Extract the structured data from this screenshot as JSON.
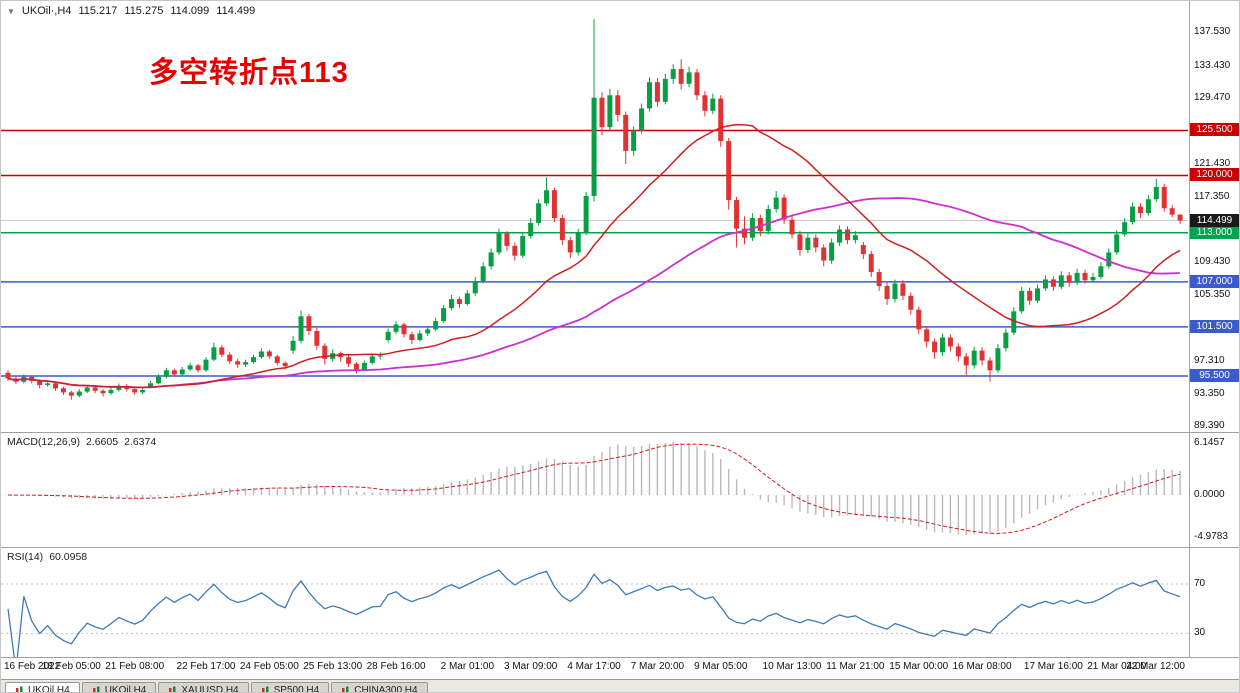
{
  "main_title": {
    "dropdown_icon": "▼",
    "symbol": "UKOil·,H4",
    "open": "115.217",
    "high": "115.275",
    "low": "114.099",
    "close": "114.499"
  },
  "annotation": {
    "text": "多空转折点113",
    "color": "#e60000"
  },
  "chart_data": {
    "type": "candlestick",
    "symbol": "UKOil",
    "timeframe": "H4",
    "title": "UKOil·,H4 115.217 115.275 114.099 114.499",
    "x_labels": [
      "16 Feb 2022",
      "18 Feb 05:00",
      "21 Feb 08:00",
      "22 Feb 17:00",
      "24 Feb 05:00",
      "25 Feb 13:00",
      "28 Feb 16:00",
      "2 Mar 01:00",
      "3 Mar 09:00",
      "4 Mar 17:00",
      "7 Mar 20:00",
      "9 Mar 05:00",
      "10 Mar 13:00",
      "11 Mar 21:00",
      "15 Mar 00:00",
      "16 Mar 08:00",
      "17 Mar 16:00",
      "21 Mar 04:00",
      "22 Mar 12:00"
    ],
    "price_ticks": [
      {
        "v": 137.53,
        "label": "137.530"
      },
      {
        "v": 133.43,
        "label": "133.430"
      },
      {
        "v": 129.47,
        "label": "129.470"
      },
      {
        "v": 121.43,
        "label": "121.430"
      },
      {
        "v": 117.35,
        "label": "117.350"
      },
      {
        "v": 109.43,
        "label": "109.430"
      },
      {
        "v": 105.35,
        "label": "105.350"
      },
      {
        "v": 97.31,
        "label": "97.310"
      },
      {
        "v": 93.35,
        "label": "93.350"
      },
      {
        "v": 89.39,
        "label": "89.390"
      }
    ],
    "levels": [
      {
        "v": 125.5,
        "label": "125.500",
        "color": "#c80000"
      },
      {
        "v": 120.0,
        "label": "120.000",
        "color": "#c80000"
      },
      {
        "v": 113.0,
        "label": "113.000",
        "color": "#00a44e"
      },
      {
        "v": 107.0,
        "label": "107.000",
        "color": "#3b5acb"
      },
      {
        "v": 101.5,
        "label": "101.500",
        "color": "#3b5acb"
      },
      {
        "v": 95.5,
        "label": "95.500",
        "color": "#3b5acb"
      }
    ],
    "current_price": {
      "v": 114.499,
      "label": "114.499",
      "color": "#1a1a1a"
    },
    "candles": [
      [
        95.9,
        96.2,
        94.9,
        95.2
      ],
      [
        95.2,
        95.5,
        94.5,
        94.8
      ],
      [
        94.8,
        95.7,
        94.6,
        95.4
      ],
      [
        95.4,
        95.6,
        94.6,
        94.9
      ],
      [
        94.9,
        95.1,
        94,
        94.4
      ],
      [
        94.4,
        94.9,
        94.2,
        94.6
      ],
      [
        94.6,
        94.8,
        93.7,
        94
      ],
      [
        94,
        94.2,
        93.2,
        93.5
      ],
      [
        93.5,
        93.7,
        92.6,
        93.1
      ],
      [
        93.1,
        93.9,
        92.9,
        93.6
      ],
      [
        93.6,
        94.4,
        93.4,
        94.1
      ],
      [
        94.1,
        94.3,
        93.4,
        93.7
      ],
      [
        93.7,
        93.9,
        93,
        93.4
      ],
      [
        93.4,
        94.1,
        93.2,
        93.8
      ],
      [
        93.8,
        94.6,
        93.6,
        94.3
      ],
      [
        94.3,
        94.5,
        93.6,
        93.9
      ],
      [
        93.9,
        94.1,
        93.2,
        93.5
      ],
      [
        93.5,
        94,
        93.3,
        93.8
      ],
      [
        94.2,
        94.9,
        94,
        94.6
      ],
      [
        94.6,
        95.7,
        94.5,
        95.4
      ],
      [
        95.4,
        96.5,
        95.2,
        96.2
      ],
      [
        96.2,
        96.4,
        95.4,
        95.7
      ],
      [
        95.7,
        96.6,
        95.5,
        96.3
      ],
      [
        96.3,
        97.1,
        96.1,
        96.8
      ],
      [
        96.8,
        97,
        95.9,
        96.2
      ],
      [
        96.2,
        97.8,
        96,
        97.5
      ],
      [
        97.5,
        99.6,
        97.3,
        99
      ],
      [
        99,
        99.3,
        97.8,
        98.1
      ],
      [
        98.1,
        98.4,
        97,
        97.3
      ],
      [
        97.3,
        97.6,
        96.5,
        96.9
      ],
      [
        96.9,
        97.5,
        96.6,
        97.2
      ],
      [
        97.2,
        98.1,
        97,
        97.8
      ],
      [
        97.8,
        98.9,
        97.6,
        98.5
      ],
      [
        98.5,
        98.7,
        97.6,
        97.9
      ],
      [
        97.9,
        98.1,
        96.8,
        97.1
      ],
      [
        97.1,
        97.3,
        96.3,
        96.7
      ],
      [
        98.6,
        100.4,
        98.2,
        99.8
      ],
      [
        99.8,
        103.5,
        99.5,
        102.8
      ],
      [
        102.8,
        103.1,
        100.5,
        101
      ],
      [
        101,
        101.4,
        98.7,
        99.2
      ],
      [
        99.2,
        99.5,
        96.9,
        97.6
      ],
      [
        97.6,
        98.8,
        97.2,
        98.3
      ],
      [
        98.3,
        98.5,
        97.3,
        97.8
      ],
      [
        97.8,
        98,
        96.6,
        97
      ],
      [
        97,
        97.2,
        95.8,
        96.3
      ],
      [
        96.3,
        97.4,
        96.1,
        97.1
      ],
      [
        97.1,
        98.2,
        96.9,
        97.9
      ],
      [
        97.9,
        98.4,
        97.5,
        98
      ],
      [
        99.9,
        101.3,
        99.6,
        100.9
      ],
      [
        100.9,
        102.2,
        100.6,
        101.8
      ],
      [
        101.8,
        102,
        100.2,
        100.6
      ],
      [
        100.6,
        100.9,
        99.4,
        99.9
      ],
      [
        99.9,
        101.1,
        99.7,
        100.7
      ],
      [
        100.7,
        101.6,
        100.4,
        101.2
      ],
      [
        101.2,
        102.6,
        101,
        102.2
      ],
      [
        102.2,
        104.2,
        102,
        103.8
      ],
      [
        103.8,
        105.4,
        103.5,
        104.9
      ],
      [
        104.9,
        105.2,
        103.8,
        104.3
      ],
      [
        104.3,
        106,
        104.1,
        105.6
      ],
      [
        105.6,
        107.6,
        105.3,
        107.1
      ],
      [
        107.1,
        109.4,
        106.8,
        108.9
      ],
      [
        108.9,
        111.1,
        108.5,
        110.6
      ],
      [
        110.6,
        113.5,
        110.3,
        112.9
      ],
      [
        112.9,
        113.2,
        110.8,
        111.4
      ],
      [
        111.4,
        111.8,
        109.6,
        110.2
      ],
      [
        110.2,
        113.1,
        109.9,
        112.6
      ],
      [
        112.6,
        114.8,
        112.3,
        114.2
      ],
      [
        114.2,
        117.1,
        113.9,
        116.6
      ],
      [
        116.6,
        119.8,
        116.3,
        118.2
      ],
      [
        118.2,
        118.5,
        114.3,
        114.8
      ],
      [
        114.8,
        115.2,
        111.5,
        112.1
      ],
      [
        112.1,
        112.5,
        109.9,
        110.6
      ],
      [
        110.6,
        113.5,
        110.2,
        113
      ],
      [
        113,
        118,
        112.7,
        117.5
      ],
      [
        117.5,
        139.1,
        116.8,
        129.5
      ],
      [
        129.5,
        130.2,
        124.9,
        125.9
      ],
      [
        125.9,
        130.6,
        125.5,
        129.8
      ],
      [
        129.8,
        130.4,
        126.6,
        127.4
      ],
      [
        127.4,
        127.8,
        121.4,
        123
      ],
      [
        123,
        126,
        122.4,
        125.5
      ],
      [
        125.5,
        128.8,
        125.1,
        128.2
      ],
      [
        128.2,
        132,
        127.8,
        131.4
      ],
      [
        131.4,
        131.9,
        128.4,
        129
      ],
      [
        129,
        132.4,
        128.7,
        131.8
      ],
      [
        131.8,
        133.6,
        131.2,
        133
      ],
      [
        133,
        134.2,
        130.5,
        131.2
      ],
      [
        131.2,
        133.3,
        130.8,
        132.6
      ],
      [
        132.6,
        133,
        129.2,
        129.8
      ],
      [
        129.8,
        130.3,
        127.2,
        127.9
      ],
      [
        127.9,
        130,
        127.5,
        129.4
      ],
      [
        129.4,
        129.8,
        123.5,
        124.2
      ],
      [
        124.2,
        124.6,
        115.8,
        117
      ],
      [
        117,
        117.4,
        111.2,
        113.5
      ],
      [
        113.5,
        115,
        111.6,
        112.4
      ],
      [
        112.4,
        115.4,
        112,
        114.8
      ],
      [
        114.8,
        115.2,
        112.6,
        113.2
      ],
      [
        113.2,
        116.4,
        112.8,
        115.9
      ],
      [
        115.9,
        118.1,
        115.5,
        117.3
      ],
      [
        117.3,
        117.7,
        114.1,
        114.6
      ],
      [
        114.6,
        115,
        112.3,
        112.8
      ],
      [
        112.8,
        113.2,
        110.2,
        110.9
      ],
      [
        110.9,
        112.9,
        110.5,
        112.4
      ],
      [
        112.4,
        112.8,
        110.6,
        111.2
      ],
      [
        111.2,
        111.6,
        108.9,
        109.6
      ],
      [
        109.6,
        112.3,
        109.2,
        111.8
      ],
      [
        111.8,
        113.9,
        111.4,
        113.4
      ],
      [
        113.4,
        113.8,
        111.6,
        112.1
      ],
      [
        112.1,
        113.2,
        111.7,
        112.7
      ],
      [
        111.5,
        111.9,
        109.8,
        110.4
      ],
      [
        110.4,
        110.8,
        107.6,
        108.2
      ],
      [
        108.2,
        108.6,
        105.9,
        106.5
      ],
      [
        106.5,
        106.9,
        104.2,
        104.9
      ],
      [
        104.9,
        107.3,
        104.5,
        106.8
      ],
      [
        106.8,
        107.2,
        104.8,
        105.3
      ],
      [
        105.3,
        105.7,
        103,
        103.6
      ],
      [
        103.6,
        104,
        100.6,
        101.2
      ],
      [
        101.2,
        101.6,
        99,
        99.7
      ],
      [
        99.7,
        100.1,
        97.6,
        98.4
      ],
      [
        98.4,
        100.7,
        98,
        100.2
      ],
      [
        100.2,
        100.6,
        98.5,
        99.1
      ],
      [
        99.1,
        99.5,
        97.3,
        97.9
      ],
      [
        97.9,
        98.3,
        95.6,
        96.8
      ],
      [
        96.8,
        99.1,
        96.4,
        98.6
      ],
      [
        98.6,
        99,
        96.8,
        97.4
      ],
      [
        97.4,
        97.8,
        94.8,
        96.2
      ],
      [
        96.2,
        99.4,
        95.9,
        98.9
      ],
      [
        98.9,
        101.3,
        98.5,
        100.8
      ],
      [
        100.8,
        103.9,
        100.5,
        103.4
      ],
      [
        103.4,
        106.4,
        103.1,
        105.9
      ],
      [
        105.9,
        106.3,
        104.2,
        104.7
      ],
      [
        104.7,
        106.7,
        104.4,
        106.2
      ],
      [
        106.2,
        107.8,
        105.9,
        107.3
      ],
      [
        107.3,
        107.7,
        105.9,
        106.4
      ],
      [
        106.4,
        108.3,
        106.1,
        107.8
      ],
      [
        107.8,
        108.2,
        106.4,
        106.9
      ],
      [
        106.9,
        108.6,
        106.6,
        108.1
      ],
      [
        108.1,
        108.5,
        106.8,
        107.2
      ],
      [
        107.2,
        108.1,
        106.9,
        107.6
      ],
      [
        107.6,
        109.4,
        107.3,
        108.9
      ],
      [
        108.9,
        111.1,
        108.6,
        110.6
      ],
      [
        110.6,
        113.3,
        110.3,
        112.8
      ],
      [
        112.8,
        114.8,
        112.5,
        114.3
      ],
      [
        114.3,
        116.7,
        114,
        116.2
      ],
      [
        116.2,
        116.6,
        114.8,
        115.4
      ],
      [
        115.4,
        117.6,
        115.1,
        117.1
      ],
      [
        117.1,
        119.6,
        116.8,
        118.6
      ],
      [
        118.6,
        119,
        115.6,
        116
      ],
      [
        116,
        116.4,
        114.9,
        115.217
      ],
      [
        115.217,
        115.275,
        114.099,
        114.499
      ]
    ],
    "indicators": {
      "macd": {
        "name": "MACD(12,26,9)",
        "value_main": "2.6605",
        "value_signal": "2.6374",
        "ticks": [
          {
            "v": 6.1457,
            "label": "6.1457"
          },
          {
            "v": 0,
            "label": "0.0000"
          },
          {
            "v": -4.9783,
            "label": "-4.9783"
          }
        ]
      },
      "rsi": {
        "name": "RSI(14)",
        "value": "60.0958",
        "ticks": [
          {
            "v": 70,
            "label": "70"
          },
          {
            "v": 30,
            "label": "30"
          }
        ]
      }
    },
    "colors": {
      "up": "#089e44",
      "down": "#e03232",
      "ma_fast": "#cc2020",
      "ma_slow": "#cf2ecf",
      "macd_hist": "#b9b9b9",
      "macd_signal": "#cf1f1f",
      "rsi": "#3e7ab8",
      "current_line": "#c8c8c8"
    }
  },
  "bottom_tabs": [
    {
      "label": "UKOil,H4",
      "active": true
    },
    {
      "label": "UKOil,H4",
      "active": false
    },
    {
      "label": "XAUUSD,H4",
      "active": false
    },
    {
      "label": "SP500,H4",
      "active": false
    },
    {
      "label": "CHINA300,H4",
      "active": false
    }
  ]
}
